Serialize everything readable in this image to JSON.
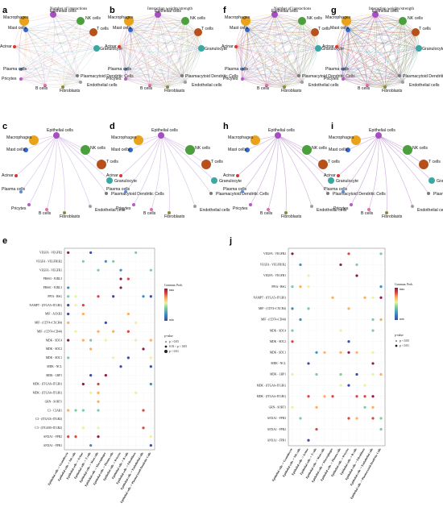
{
  "colors": {
    "node_palette": [
      "#e8a21b",
      "#a64ec0",
      "#4c9f3d",
      "#2f68c9",
      "#b8501b",
      "#d63832",
      "#3aa7a3",
      "#5b8fcf",
      "#7a7a7a",
      "#b45cc4",
      "#e06fa8",
      "#8a8a3a",
      "#9e9e9e"
    ],
    "dot_cmap": [
      "#3a4aa8",
      "#3b8fc2",
      "#7ccba2",
      "#e6f59d",
      "#fdae61",
      "#d7463f",
      "#8a1c44"
    ]
  },
  "panels": {
    "a": {
      "letter": "a",
      "title": "Number of interactions"
    },
    "b": {
      "letter": "b",
      "title": "Interaction weights/strength"
    },
    "f": {
      "letter": "f",
      "title": "Number of interactions"
    },
    "g": {
      "letter": "g",
      "title": "Interaction weights/strength"
    },
    "c": {
      "letter": "c"
    },
    "d": {
      "letter": "d"
    },
    "h": {
      "letter": "h"
    },
    "i": {
      "letter": "i"
    },
    "e": {
      "letter": "e"
    },
    "j": {
      "letter": "j"
    }
  },
  "nodes": [
    "Macrophages",
    "Epithelial cells",
    "NK cells",
    "Mast cells",
    "T cells",
    "Acinar",
    "Granulocyte",
    "Plasma cells",
    "Plasmacytoid Dendritic Cells",
    "Pricytes",
    "B cells",
    "Fibroblasts",
    "Endothelial cells"
  ],
  "nodes_cd": [
    "Epithelial cells",
    "Macrophages",
    "NK cells",
    "Mast cells",
    "T cells",
    "Acinar",
    "Granulocyte",
    "Plasma cells",
    "Plasmacytoid Dendritic Cells",
    "Pricytes",
    "B cells",
    "Fibroblasts",
    "Endothelial cells"
  ],
  "chart_data": [
    {
      "type": "heatmap",
      "panel": "e",
      "y_categories": [
        "VEGFA - VEGFR2",
        "VEGFA - VEGFR1R2",
        "VEGFA - VEGFR1",
        "PRSS3 - F2RL3",
        "PRSS1 - F2RL3",
        "PPIA - BSG",
        "NAMPT - (ITGA5+ITGB1)",
        "MIF - ACKR3",
        "MIF - (CD74+CXCR4)",
        "MIF - (CD74+CD44)",
        "MDK - SDC4",
        "MDK - SDC2",
        "MDK - SDC1",
        "MDK - NCL",
        "MDK - LRP1",
        "MDK - (ITGA6+ITGB1)",
        "MDK - (ITGA4+ITGB1)",
        "GRN - SORT1",
        "C3 - C3AR1",
        "C3 - (ITGAX+ITGB2)",
        "C3 - (ITGAM+ITGB2)",
        "ANXA1 - FPR2",
        "ANXA1 - FPR1"
      ],
      "x_categories": [
        "Epithelial cells -> Granulocyte",
        "Epithelial cells -> NK cells",
        "Epithelial cells -> Acinar",
        "Epithelial cells -> T cells",
        "Epithelial cells -> Mast cells",
        "Epithelial cells -> Macrophages",
        "Epithelial cells -> Plasma cells",
        "Epithelial cells -> Pricytes",
        "Epithelial cells -> B cells",
        "Epithelial cells -> Fibroblasts",
        "Epithelial cells -> Endothelial cells",
        "Epithelial cells -> Plasmacytoid Dendritic Cells"
      ],
      "colorbar_label": "Commun. Prob.",
      "colorbar_ticks": [
        "max",
        "min"
      ],
      "size_legend_title": "p-value",
      "size_legend_items": [
        "p > 0.05",
        "0.01 < p < 0.05",
        "p < 0.01"
      ]
    },
    {
      "type": "heatmap",
      "panel": "j",
      "y_categories": [
        "VEGFA - VEGFR2",
        "VEGFA - VEGFR1R2",
        "VEGFA - VEGFR1",
        "PPIA - BSG",
        "NAMPT - (ITGA5+ITGB1)",
        "MIF - (CD74+CXCR4)",
        "MIF - (CD74+CD44)",
        "MDK - SDC4",
        "MDK - SDC2",
        "MDK - SDC1",
        "MDK - NCL",
        "MDK - LRP1",
        "MDK - (ITGA6+ITGB1)",
        "MDK - (ITGA4+ITGB1)",
        "GRN - SORT1",
        "ANXA1 - FPR3",
        "ANXA1 - FPR2",
        "ANXA1 - FPR1"
      ],
      "x_categories": [
        "Epithelial cells -> Granulocyte",
        "Epithelial cells -> NK cells",
        "Epithelial cells -> Acinar",
        "Epithelial cells -> T cells",
        "Epithelial cells -> Mast cells",
        "Epithelial cells -> Macrophages",
        "Epithelial cells -> Plasma cells",
        "Epithelial cells -> Pricytes",
        "Epithelial cells -> B cells",
        "Epithelial cells -> Fibroblasts",
        "Epithelial cells -> Endothelial cells",
        "Epithelial cells -> Plasmacytoid Dendritic Cells"
      ],
      "size_legend_title": "p-value",
      "size_legend_items": [
        "p < 0.05",
        "p < 0.01"
      ],
      "colorbar_label": "Commun. Prob.",
      "colorbar_ticks": [
        "max",
        "min"
      ]
    }
  ]
}
